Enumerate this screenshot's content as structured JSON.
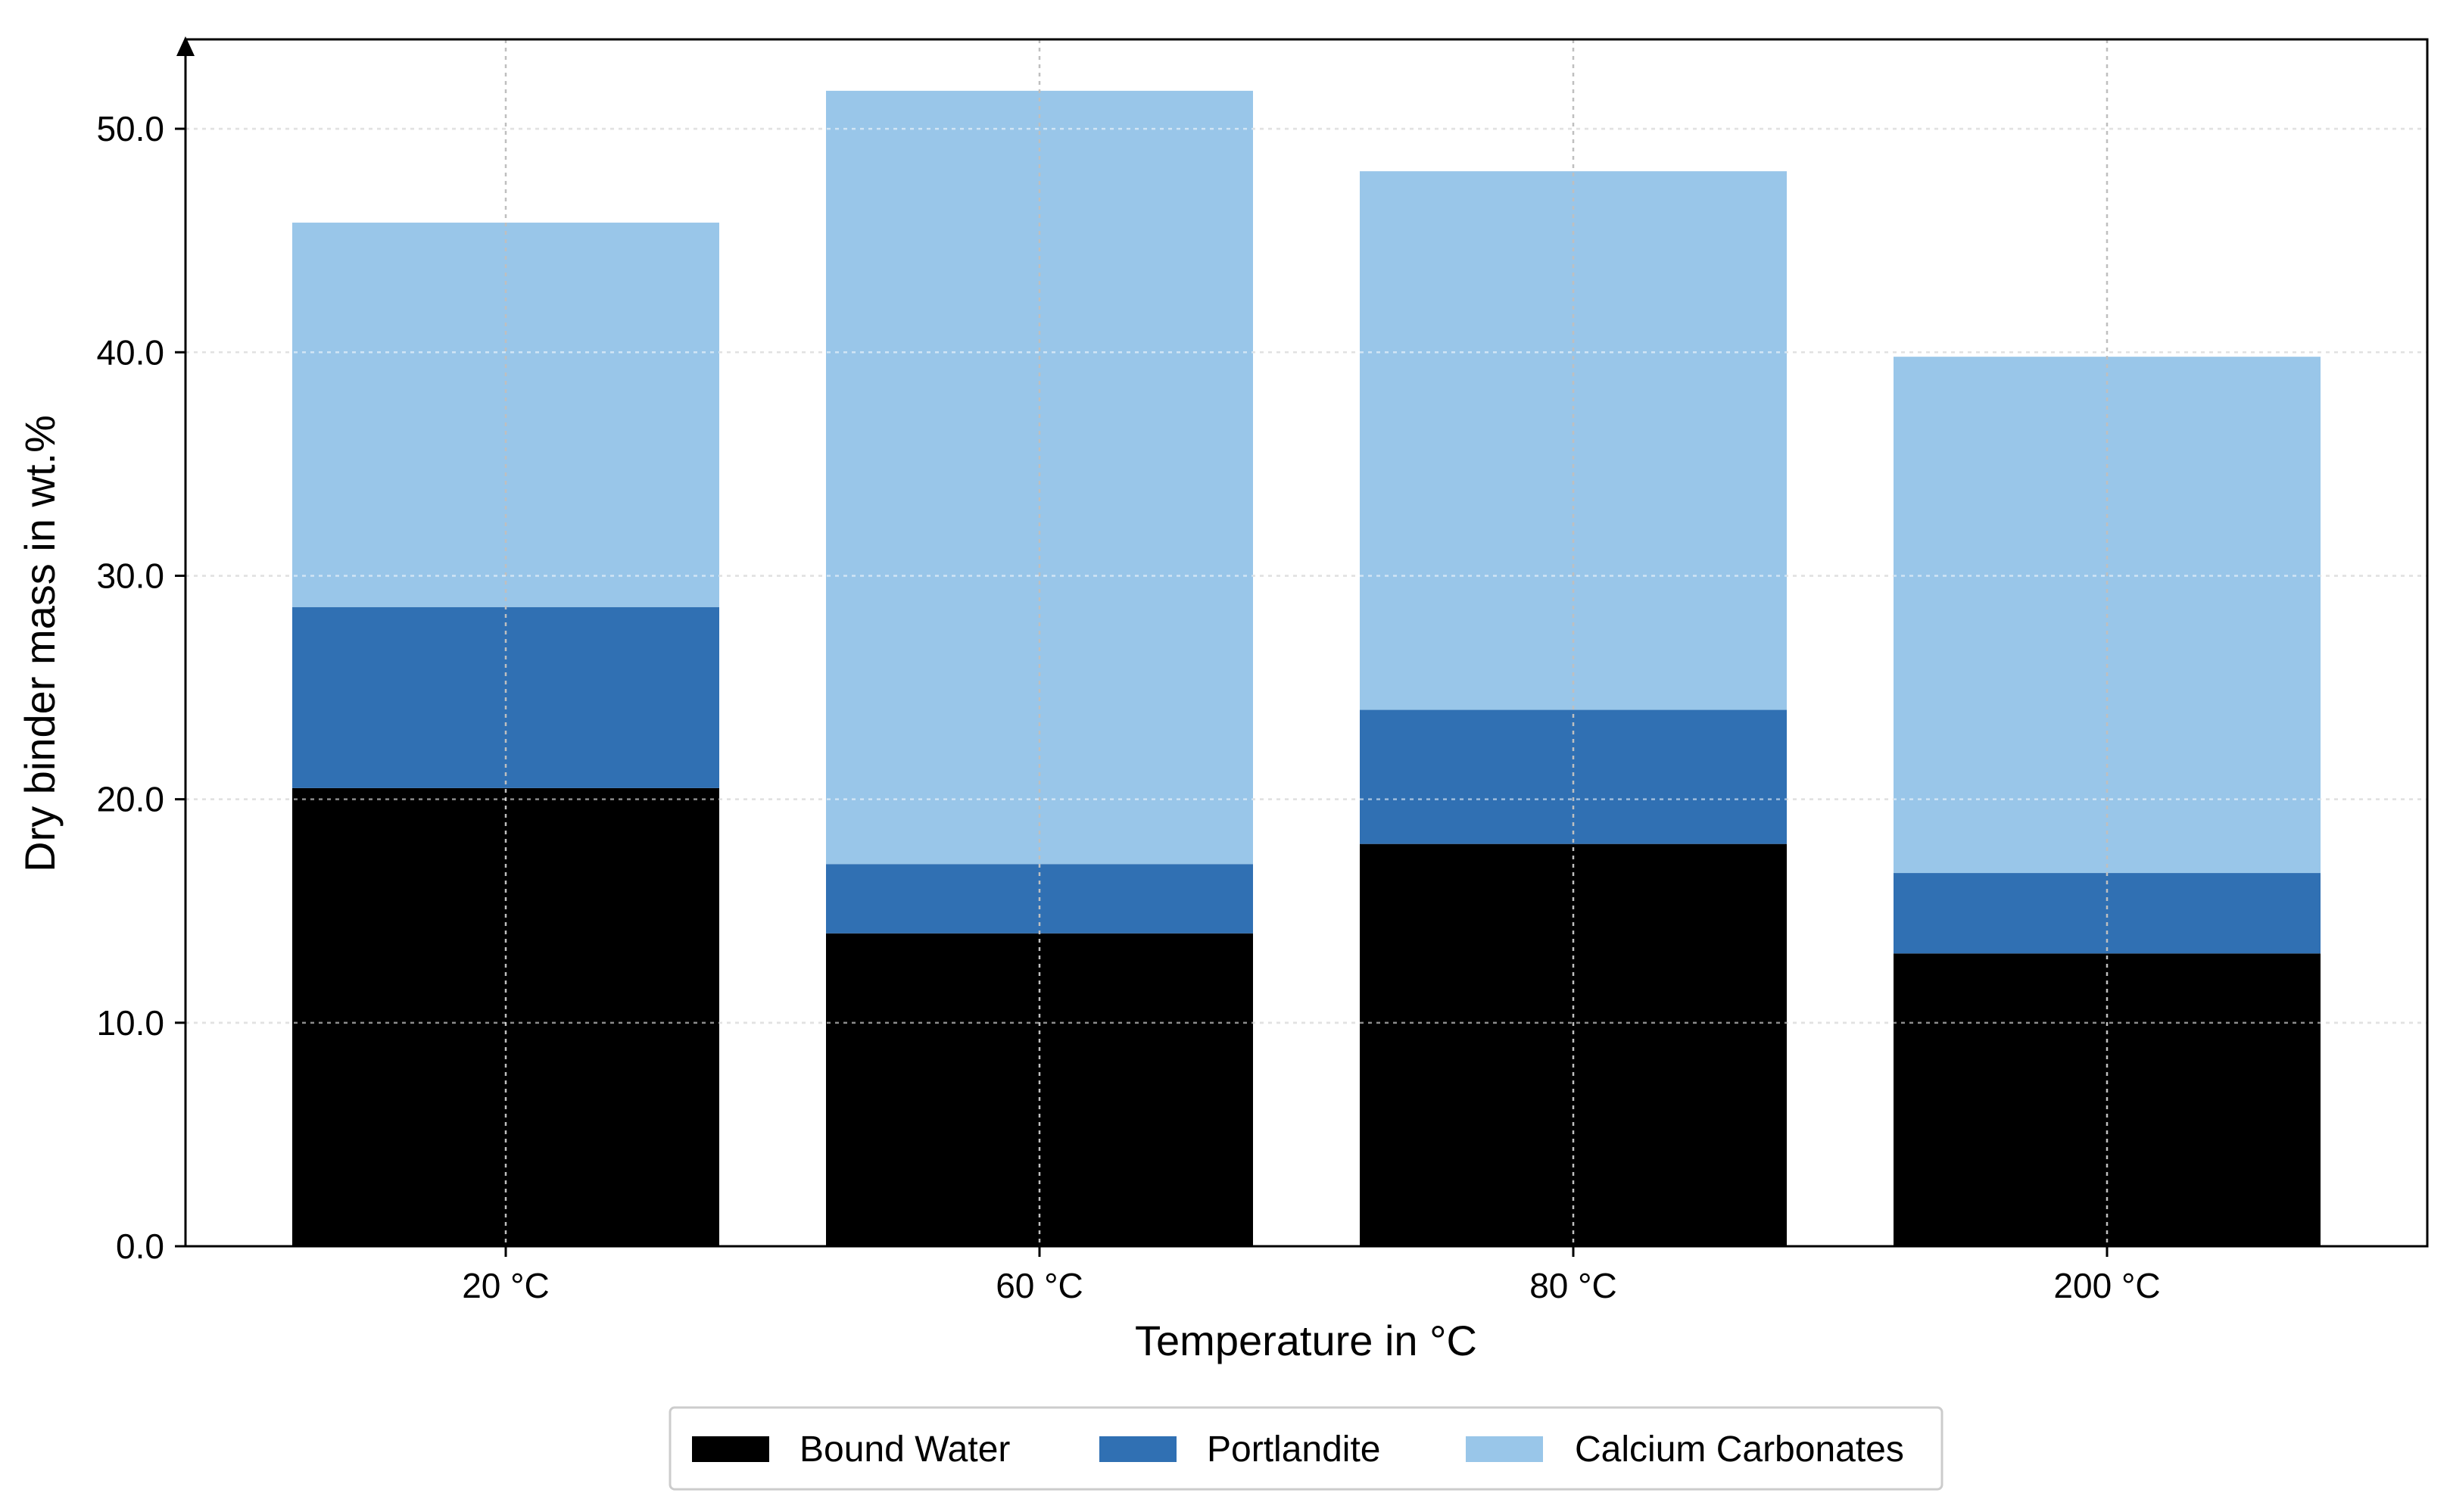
{
  "chart_data": {
    "type": "bar",
    "stacked": true,
    "title": "",
    "xlabel": "Temperature in °C",
    "ylabel": "Dry binder mass in wt.%",
    "ylim": [
      0,
      54
    ],
    "yticks": [
      "0.0",
      "10.0",
      "20.0",
      "30.0",
      "40.0",
      "50.0"
    ],
    "ytick_values": [
      0,
      10,
      20,
      30,
      40,
      50
    ],
    "grid": true,
    "legend_position": "bottom-center",
    "categories": [
      "20 °C",
      "60 °C",
      "80 °C",
      "200 °C"
    ],
    "series": [
      {
        "name": "Bound Water",
        "color": "#000000",
        "values": [
          20.5,
          14.0,
          18.0,
          13.1
        ]
      },
      {
        "name": "Portlandite",
        "color": "#3070b3",
        "values": [
          8.1,
          3.1,
          6.0,
          3.6
        ]
      },
      {
        "name": "Calcium Carbonates",
        "color": "#99c6e9",
        "values": [
          17.2,
          34.6,
          24.1,
          23.1
        ]
      }
    ]
  }
}
